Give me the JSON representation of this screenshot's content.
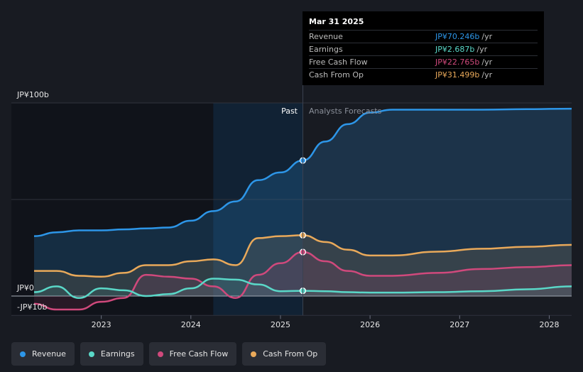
{
  "tooltip": {
    "date": "Mar 31 2025",
    "unit": "/yr",
    "rows": [
      {
        "name": "Revenue",
        "value": "JP¥70.246b",
        "color": "#2d96e8"
      },
      {
        "name": "Earnings",
        "value": "JP¥2.687b",
        "color": "#5ad8c8"
      },
      {
        "name": "Free Cash Flow",
        "value": "JP¥22.765b",
        "color": "#d0497c"
      },
      {
        "name": "Cash From Op",
        "value": "JP¥31.499b",
        "color": "#e9a95a"
      }
    ]
  },
  "legend": [
    {
      "label": "Revenue",
      "color": "#2d96e8"
    },
    {
      "label": "Earnings",
      "color": "#5ad8c8"
    },
    {
      "label": "Free Cash Flow",
      "color": "#d0497c"
    },
    {
      "label": "Cash From Op",
      "color": "#e9a95a"
    }
  ],
  "chart_data": {
    "type": "line",
    "ylabels": {
      "top": "JP¥100b",
      "zero": "JP¥0",
      "bottom": "-JP¥10b"
    },
    "y_range": [
      -10,
      100
    ],
    "x_range": [
      2022.25,
      2028.25
    ],
    "x_ticks": [
      2023,
      2024,
      2025,
      2026,
      2027,
      2028
    ],
    "x_tick_labels": [
      "2023",
      "2024",
      "2025",
      "2026",
      "2027",
      "2028"
    ],
    "past_label": "Past",
    "forecast_label": "Analysts Forecasts",
    "highlight_start": 2024.25,
    "divider_x": 2025.25,
    "series": [
      {
        "name": "Revenue",
        "color": "#2d96e8",
        "fill": "rgba(45,150,232,0.20)",
        "points": [
          [
            2022.25,
            31
          ],
          [
            2022.5,
            33
          ],
          [
            2022.75,
            34
          ],
          [
            2023,
            34
          ],
          [
            2023.25,
            34.5
          ],
          [
            2023.5,
            35
          ],
          [
            2023.75,
            35.5
          ],
          [
            2024,
            39
          ],
          [
            2024.25,
            44
          ],
          [
            2024.5,
            49
          ],
          [
            2024.75,
            60
          ],
          [
            2025,
            64
          ],
          [
            2025.25,
            70.2
          ],
          [
            2025.5,
            80
          ],
          [
            2025.75,
            89
          ],
          [
            2026,
            95
          ],
          [
            2026.25,
            96.5
          ],
          [
            2026.75,
            96.5
          ],
          [
            2027.25,
            96.5
          ],
          [
            2027.75,
            96.8
          ],
          [
            2028.25,
            97
          ]
        ]
      },
      {
        "name": "Cash From Op",
        "color": "#e9a95a",
        "fill": "rgba(233,169,90,0.13)",
        "points": [
          [
            2022.25,
            13
          ],
          [
            2022.5,
            13
          ],
          [
            2022.75,
            10.5
          ],
          [
            2023,
            10
          ],
          [
            2023.25,
            12
          ],
          [
            2023.5,
            16
          ],
          [
            2023.75,
            16
          ],
          [
            2024,
            18
          ],
          [
            2024.25,
            19
          ],
          [
            2024.5,
            16
          ],
          [
            2024.75,
            30
          ],
          [
            2025,
            31
          ],
          [
            2025.25,
            31.5
          ],
          [
            2025.5,
            28
          ],
          [
            2025.75,
            24
          ],
          [
            2026,
            21
          ],
          [
            2026.25,
            21
          ],
          [
            2026.75,
            23
          ],
          [
            2027.25,
            24.5
          ],
          [
            2027.75,
            25.5
          ],
          [
            2028.25,
            26.5
          ]
        ]
      },
      {
        "name": "Free Cash Flow",
        "color": "#d0497c",
        "fill": "rgba(208,73,124,0.13)",
        "points": [
          [
            2022.25,
            -4
          ],
          [
            2022.5,
            -7
          ],
          [
            2022.75,
            -7
          ],
          [
            2023,
            -3
          ],
          [
            2023.25,
            -1
          ],
          [
            2023.5,
            11
          ],
          [
            2023.75,
            10
          ],
          [
            2024,
            9
          ],
          [
            2024.25,
            5
          ],
          [
            2024.5,
            -1
          ],
          [
            2024.75,
            11
          ],
          [
            2025,
            17
          ],
          [
            2025.25,
            22.8
          ],
          [
            2025.5,
            18
          ],
          [
            2025.75,
            13
          ],
          [
            2026,
            10.5
          ],
          [
            2026.25,
            10.5
          ],
          [
            2026.75,
            12
          ],
          [
            2027.25,
            14
          ],
          [
            2027.75,
            15
          ],
          [
            2028.25,
            16
          ]
        ]
      },
      {
        "name": "Earnings",
        "color": "#5ad8c8",
        "fill": "rgba(90,216,200,0.10)",
        "points": [
          [
            2022.25,
            2
          ],
          [
            2022.5,
            5
          ],
          [
            2022.75,
            -1
          ],
          [
            2023,
            4
          ],
          [
            2023.25,
            3
          ],
          [
            2023.5,
            0
          ],
          [
            2023.75,
            1
          ],
          [
            2024,
            4
          ],
          [
            2024.25,
            9
          ],
          [
            2024.5,
            8.5
          ],
          [
            2024.75,
            6
          ],
          [
            2025,
            2.5
          ],
          [
            2025.25,
            2.7
          ],
          [
            2025.5,
            2.5
          ],
          [
            2025.75,
            2
          ],
          [
            2026,
            1.8
          ],
          [
            2026.25,
            1.8
          ],
          [
            2026.75,
            2
          ],
          [
            2027.25,
            2.5
          ],
          [
            2027.75,
            3.5
          ],
          [
            2028.25,
            5
          ]
        ]
      }
    ]
  }
}
